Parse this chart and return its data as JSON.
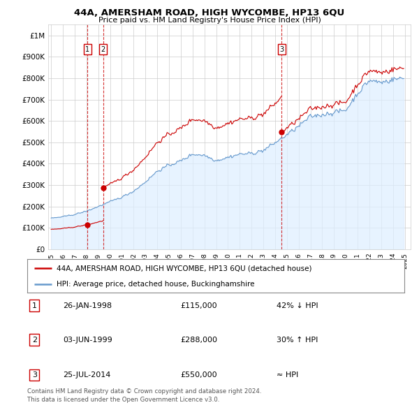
{
  "title": "44A, AMERSHAM ROAD, HIGH WYCOMBE, HP13 6QU",
  "subtitle": "Price paid vs. HM Land Registry's House Price Index (HPI)",
  "sale_prices": [
    115000,
    288000,
    550000
  ],
  "sale_labels": [
    "1",
    "2",
    "3"
  ],
  "sale_year_floats": [
    1998.07,
    1999.42,
    2014.56
  ],
  "ylim": [
    0,
    1050000
  ],
  "yticks": [
    0,
    100000,
    200000,
    300000,
    400000,
    500000,
    600000,
    700000,
    800000,
    900000,
    1000000
  ],
  "ytick_labels": [
    "£0",
    "£100K",
    "£200K",
    "£300K",
    "£400K",
    "£500K",
    "£600K",
    "£700K",
    "£800K",
    "£900K",
    "£1M"
  ],
  "xlim_start": 1994.75,
  "xlim_end": 2025.5,
  "hpi_color": "#6699cc",
  "price_color": "#cc0000",
  "fill_color": "#ddeeff",
  "legend_line1": "44A, AMERSHAM ROAD, HIGH WYCOMBE, HP13 6QU (detached house)",
  "legend_line2": "HPI: Average price, detached house, Buckinghamshire",
  "table_rows": [
    {
      "num": "1",
      "date": "26-JAN-1998",
      "price": "£115,000",
      "hpi": "42% ↓ HPI"
    },
    {
      "num": "2",
      "date": "03-JUN-1999",
      "price": "£288,000",
      "hpi": "30% ↑ HPI"
    },
    {
      "num": "3",
      "date": "25-JUL-2014",
      "price": "£550,000",
      "hpi": "≈ HPI"
    }
  ],
  "footnote": "Contains HM Land Registry data © Crown copyright and database right 2024.\nThis data is licensed under the Open Government Licence v3.0.",
  "background_color": "#ffffff",
  "grid_color": "#cccccc"
}
